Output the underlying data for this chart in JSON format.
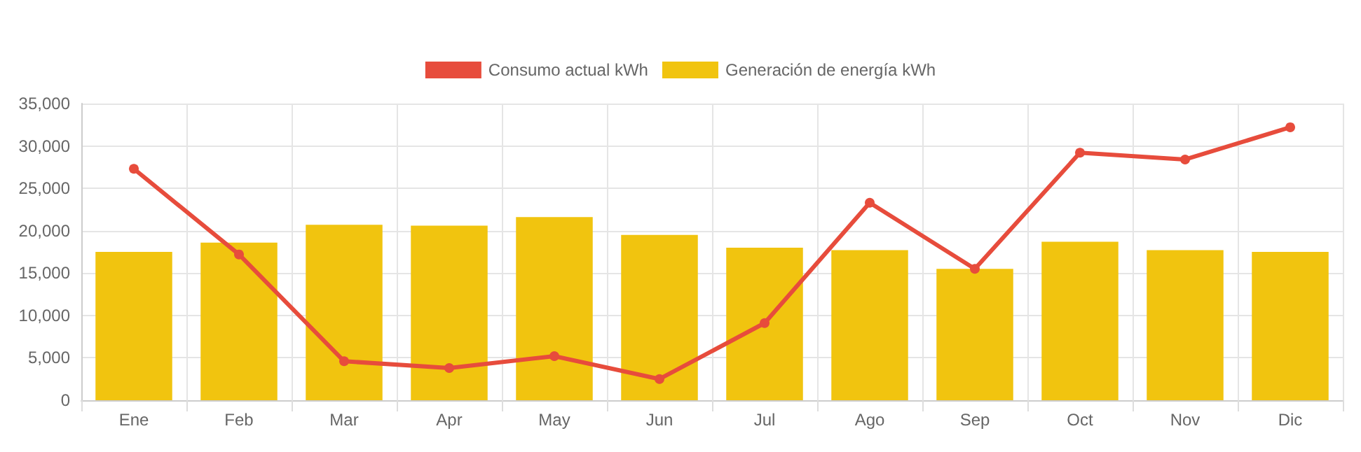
{
  "chart_data": {
    "type": "bar",
    "categories": [
      "Ene",
      "Feb",
      "Mar",
      "Apr",
      "May",
      "Jun",
      "Jul",
      "Ago",
      "Sep",
      "Oct",
      "Nov",
      "Dic"
    ],
    "series": [
      {
        "name": "Consumo actual kWh",
        "type": "line",
        "color": "#e74c3c",
        "marker": "circle",
        "line_style": "solid",
        "values": [
          27300,
          17200,
          4600,
          3800,
          5200,
          2500,
          9100,
          23300,
          15500,
          29200,
          28400,
          32200
        ]
      },
      {
        "name": "Generación de energía kWh",
        "color": "#f1c40f",
        "values": [
          17500,
          18600,
          20700,
          20600,
          21600,
          19500,
          18000,
          17700,
          15500,
          18700,
          17700,
          17500
        ]
      }
    ],
    "ylim": [
      0,
      35000
    ],
    "yticks": [
      0,
      {
        "value": 5000,
        "label": "5,000"
      },
      {
        "value": 10000,
        "label": "10,000"
      },
      {
        "value": 15000,
        "label": "15,000"
      },
      {
        "value": 20000,
        "label": "20,000"
      },
      {
        "value": 25000,
        "label": "25,000"
      },
      {
        "value": 30000,
        "label": "30,000"
      },
      {
        "value": 35000,
        "label": "35,000"
      }
    ],
    "grid": true,
    "legend": "top"
  }
}
